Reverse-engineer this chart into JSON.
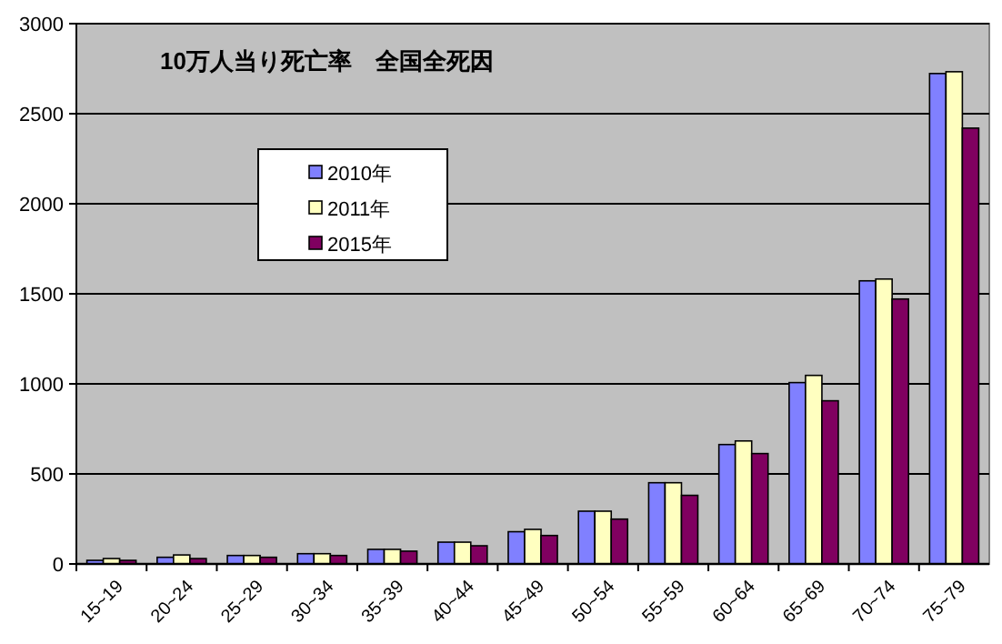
{
  "chart_data": {
    "type": "bar",
    "title": "10万人当り死亡率　全国全死因",
    "categories": [
      "15~19",
      "20~24",
      "25~29",
      "30~34",
      "35~39",
      "40~44",
      "45~49",
      "50~54",
      "55~59",
      "60~64",
      "65~69",
      "70~74",
      "75~79"
    ],
    "series": [
      {
        "name": "2010年",
        "color": "#8080ff",
        "values": [
          20,
          37,
          47,
          57,
          81,
          121,
          179,
          293,
          451,
          663,
          1007,
          1572,
          2723
        ]
      },
      {
        "name": "2011年",
        "color": "#ffffc0",
        "values": [
          30,
          50,
          47,
          57,
          81,
          121,
          192,
          293,
          451,
          683,
          1047,
          1582,
          2733
        ]
      },
      {
        "name": "2015年",
        "color": "#800060",
        "values": [
          20,
          30,
          37,
          47,
          71,
          101,
          158,
          249,
          381,
          613,
          906,
          1471,
          2420
        ]
      }
    ],
    "ylim": [
      0,
      3000
    ],
    "yticks": [
      0,
      500,
      1000,
      1500,
      2000,
      2500,
      3000
    ],
    "grid": "y",
    "legend": "top left"
  }
}
